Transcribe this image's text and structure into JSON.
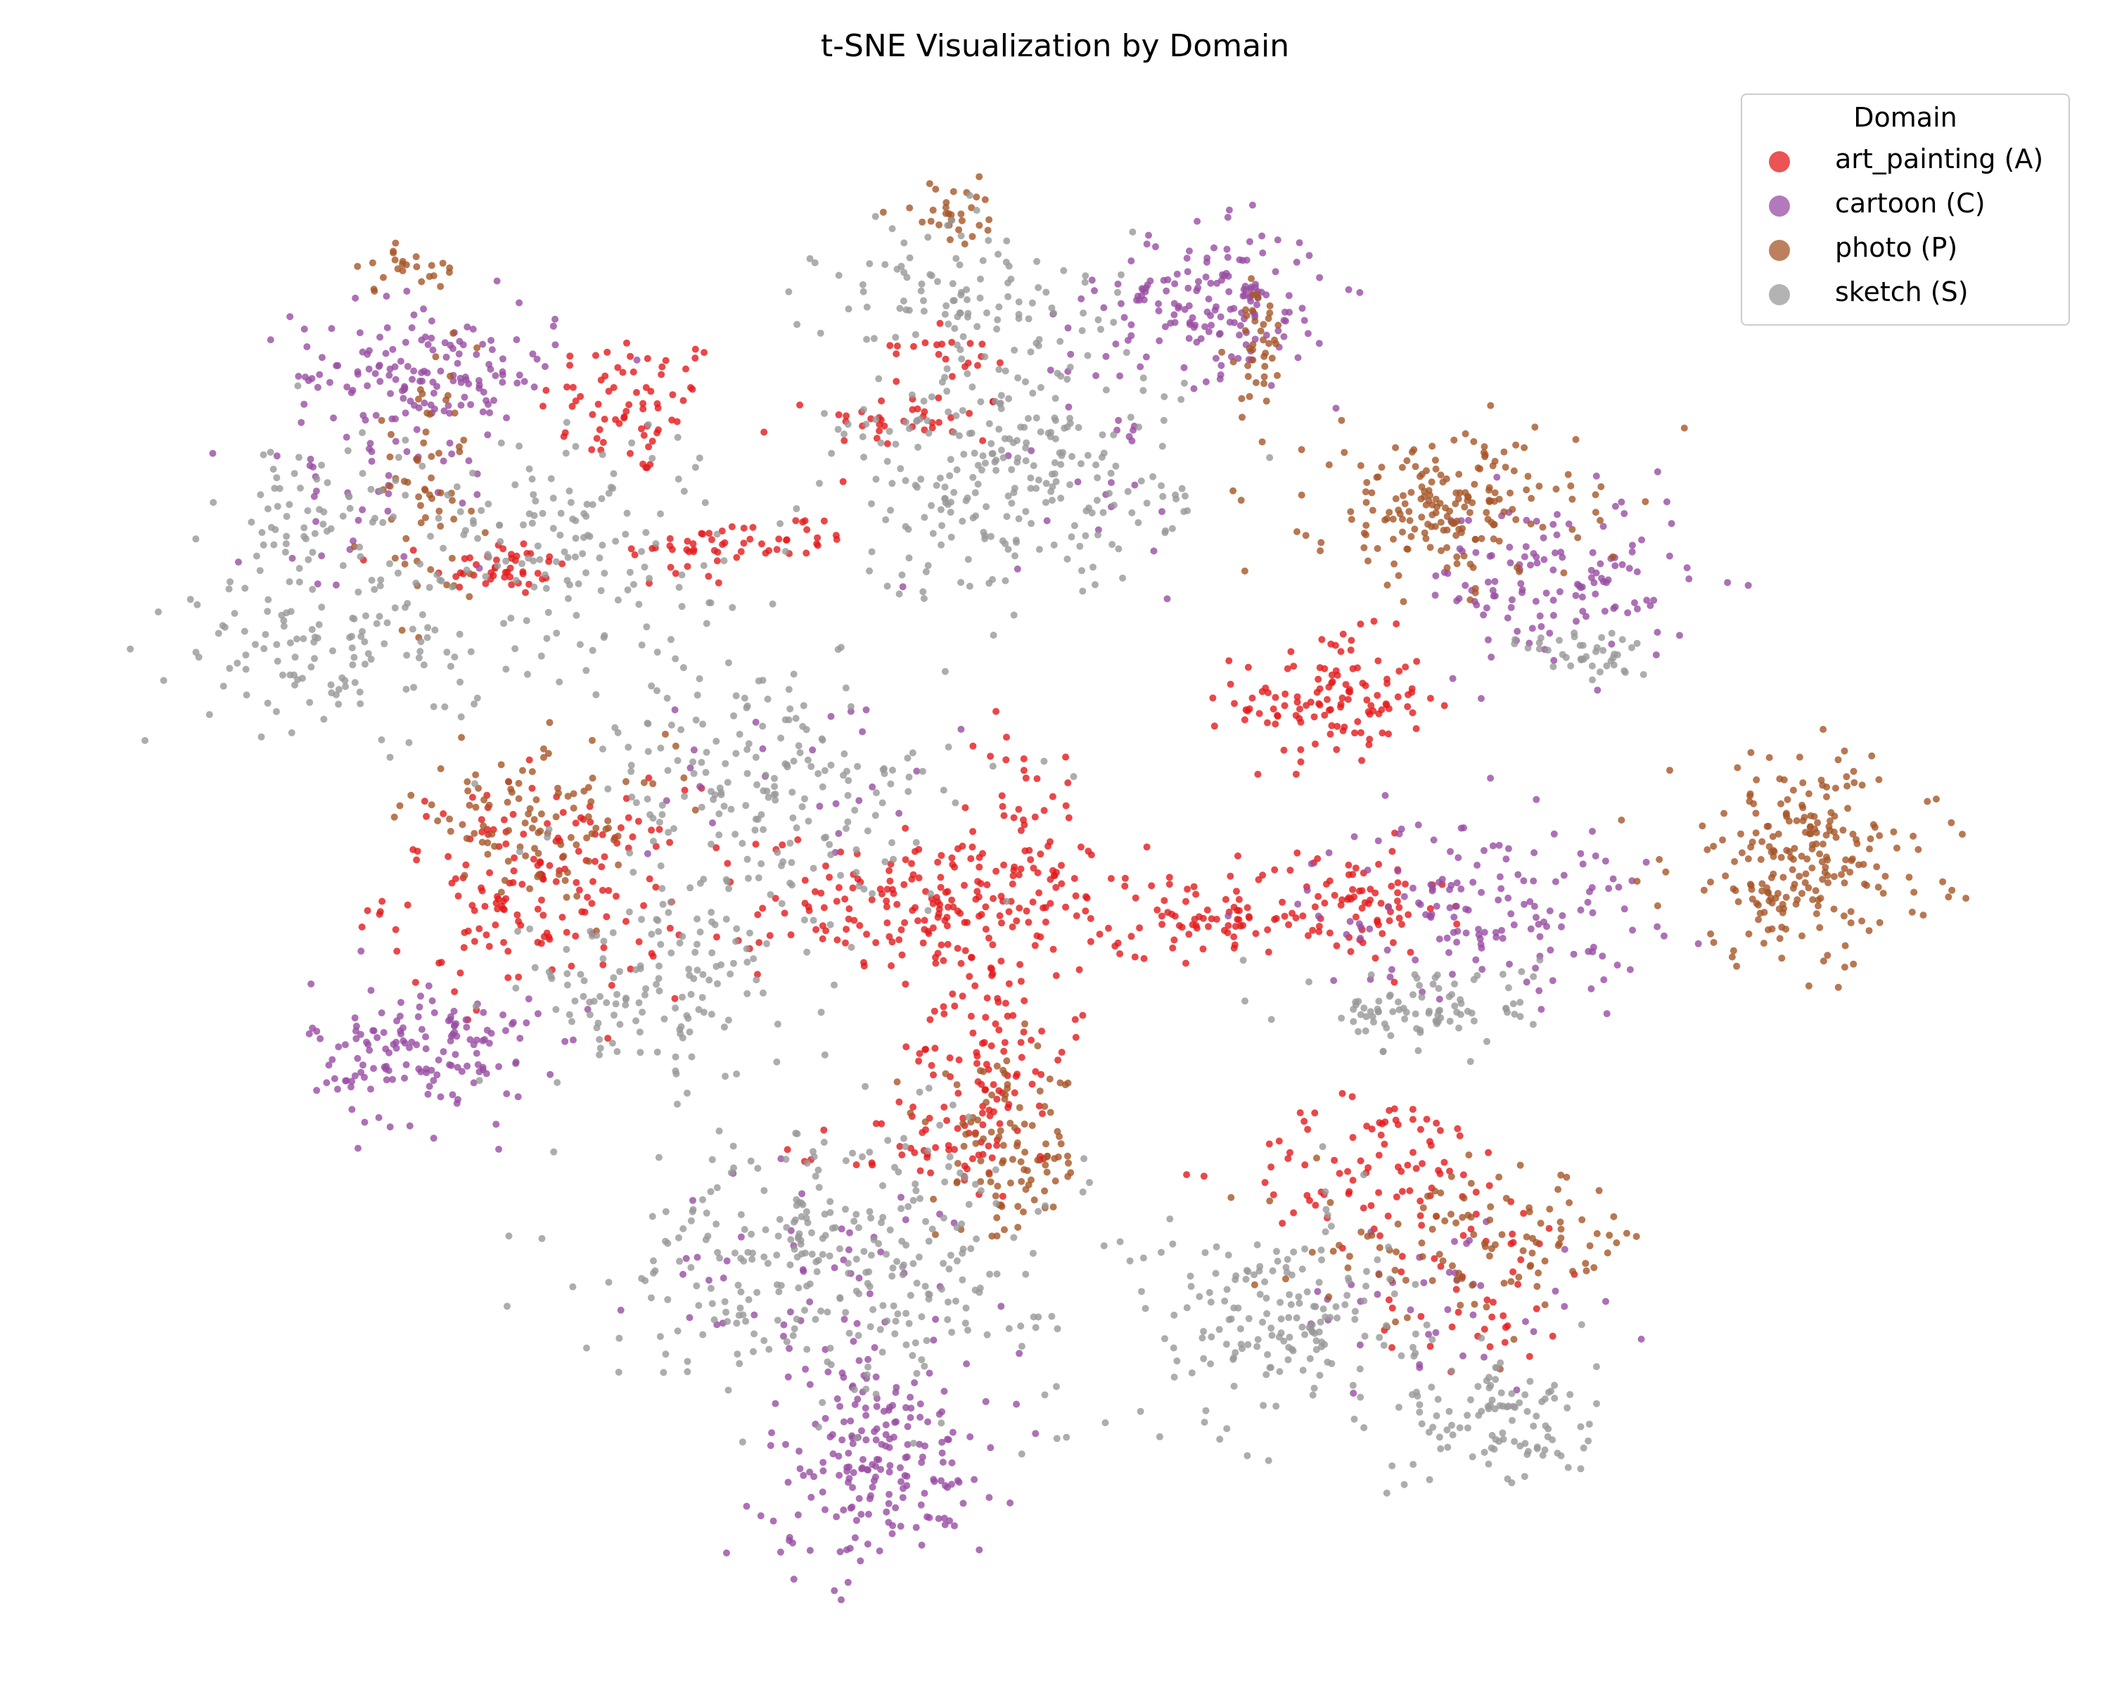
{
  "chart_data": {
    "type": "scatter",
    "title": "t-SNE Visualization by Domain",
    "xlabel": "",
    "ylabel": "",
    "axes_visible": false,
    "grid": false,
    "legend": {
      "title": "Domain",
      "placement": "top-right",
      "entries": [
        {
          "label": "art_painting (A)",
          "color": "#e41a1c"
        },
        {
          "label": "cartoon (C)",
          "color": "#984ea3"
        },
        {
          "label": "photo (P)",
          "color": "#a65628"
        },
        {
          "label": "sketch (S)",
          "color": "#999999"
        }
      ]
    },
    "xlim": [
      0,
      100
    ],
    "ylim": [
      0,
      100
    ],
    "series": [
      {
        "name": "art_painting (A)",
        "color": "#e41a1c",
        "clusters": [
          {
            "x": 27,
            "y": 82,
            "sx": 2.5,
            "sy": 2.5,
            "n": 70
          },
          {
            "x": 20,
            "y": 71,
            "sx": 1.8,
            "sy": 1.0,
            "n": 45
          },
          {
            "x": 30,
            "y": 72,
            "sx": 2.0,
            "sy": 1.2,
            "n": 30
          },
          {
            "x": 35,
            "y": 73,
            "sx": 2.0,
            "sy": 0.8,
            "n": 25
          },
          {
            "x": 42,
            "y": 81,
            "sx": 2.5,
            "sy": 1.0,
            "n": 35
          },
          {
            "x": 64,
            "y": 62,
            "sx": 2.5,
            "sy": 2.2,
            "n": 120
          },
          {
            "x": 22,
            "y": 49,
            "sx": 4.0,
            "sy": 3.5,
            "n": 170
          },
          {
            "x": 44,
            "y": 48,
            "sx": 5.0,
            "sy": 2.5,
            "n": 230
          },
          {
            "x": 58,
            "y": 47,
            "sx": 2.5,
            "sy": 1.2,
            "n": 60
          },
          {
            "x": 65,
            "y": 48,
            "sx": 2.5,
            "sy": 2.0,
            "n": 80
          },
          {
            "x": 46,
            "y": 38,
            "sx": 2.0,
            "sy": 3.5,
            "n": 90
          },
          {
            "x": 43,
            "y": 31,
            "sx": 2.5,
            "sy": 1.5,
            "n": 45
          },
          {
            "x": 48,
            "y": 56,
            "sx": 1.5,
            "sy": 2.5,
            "n": 25
          },
          {
            "x": 67,
            "y": 30,
            "sx": 4.0,
            "sy": 2.5,
            "n": 90
          },
          {
            "x": 72,
            "y": 22,
            "sx": 3.0,
            "sy": 3.0,
            "n": 40
          },
          {
            "x": 44,
            "y": 86,
            "sx": 1.5,
            "sy": 1.0,
            "n": 20
          }
        ]
      },
      {
        "name": "cartoon (C)",
        "color": "#984ea3",
        "clusters": [
          {
            "x": 16,
            "y": 84,
            "sx": 3.5,
            "sy": 2.5,
            "n": 160
          },
          {
            "x": 12,
            "y": 76,
            "sx": 3.0,
            "sy": 4.0,
            "n": 30
          },
          {
            "x": 58,
            "y": 89,
            "sx": 3.0,
            "sy": 2.5,
            "n": 160
          },
          {
            "x": 76,
            "y": 70,
            "sx": 3.5,
            "sy": 3.0,
            "n": 130
          },
          {
            "x": 72,
            "y": 48,
            "sx": 4.5,
            "sy": 3.0,
            "n": 150
          },
          {
            "x": 16,
            "y": 38,
            "sx": 3.0,
            "sy": 2.5,
            "n": 150
          },
          {
            "x": 40,
            "y": 10,
            "sx": 3.0,
            "sy": 3.5,
            "n": 190
          },
          {
            "x": 38,
            "y": 22,
            "sx": 5.0,
            "sy": 4.0,
            "n": 60
          },
          {
            "x": 70,
            "y": 21,
            "sx": 4.0,
            "sy": 3.0,
            "n": 40
          },
          {
            "x": 52,
            "y": 80,
            "sx": 3.0,
            "sy": 6.0,
            "n": 30
          },
          {
            "x": 36,
            "y": 58,
            "sx": 4.0,
            "sy": 4.0,
            "n": 25
          }
        ]
      },
      {
        "name": "photo (P)",
        "color": "#a65628",
        "clusters": [
          {
            "x": 70,
            "y": 75,
            "sx": 3.5,
            "sy": 2.5,
            "n": 190
          },
          {
            "x": 89,
            "y": 51,
            "sx": 3.5,
            "sy": 3.5,
            "n": 230
          },
          {
            "x": 22,
            "y": 54,
            "sx": 3.5,
            "sy": 2.5,
            "n": 100
          },
          {
            "x": 16,
            "y": 76,
            "sx": 1.5,
            "sy": 3.5,
            "n": 60
          },
          {
            "x": 15,
            "y": 91,
            "sx": 1.5,
            "sy": 1.2,
            "n": 25
          },
          {
            "x": 47,
            "y": 31,
            "sx": 2.0,
            "sy": 3.0,
            "n": 100
          },
          {
            "x": 72,
            "y": 25,
            "sx": 4.5,
            "sy": 2.5,
            "n": 110
          },
          {
            "x": 44,
            "y": 95,
            "sx": 1.5,
            "sy": 1.0,
            "n": 30
          },
          {
            "x": 60,
            "y": 86,
            "sx": 0.8,
            "sy": 2.5,
            "n": 40
          }
        ]
      },
      {
        "name": "sketch (S)",
        "color": "#999999",
        "clusters": [
          {
            "x": 11,
            "y": 65,
            "sx": 4.0,
            "sy": 2.5,
            "n": 120
          },
          {
            "x": 10,
            "y": 74,
            "sx": 2.5,
            "sy": 3.5,
            "n": 70
          },
          {
            "x": 23,
            "y": 73,
            "sx": 4.5,
            "sy": 4.0,
            "n": 150
          },
          {
            "x": 45,
            "y": 89,
            "sx": 4.0,
            "sy": 3.0,
            "n": 110
          },
          {
            "x": 47,
            "y": 77,
            "sx": 4.5,
            "sy": 4.0,
            "n": 260
          },
          {
            "x": 34,
            "y": 55,
            "sx": 5.0,
            "sy": 5.0,
            "n": 220
          },
          {
            "x": 28,
            "y": 42,
            "sx": 3.5,
            "sy": 3.0,
            "n": 120
          },
          {
            "x": 38,
            "y": 24,
            "sx": 6.0,
            "sy": 4.5,
            "n": 320
          },
          {
            "x": 61,
            "y": 20,
            "sx": 3.5,
            "sy": 3.5,
            "n": 170
          },
          {
            "x": 73,
            "y": 13,
            "sx": 2.5,
            "sy": 2.5,
            "n": 110
          },
          {
            "x": 69,
            "y": 41,
            "sx": 3.0,
            "sy": 1.5,
            "n": 90
          },
          {
            "x": 78,
            "y": 65,
            "sx": 1.8,
            "sy": 1.0,
            "n": 40
          }
        ]
      }
    ]
  }
}
